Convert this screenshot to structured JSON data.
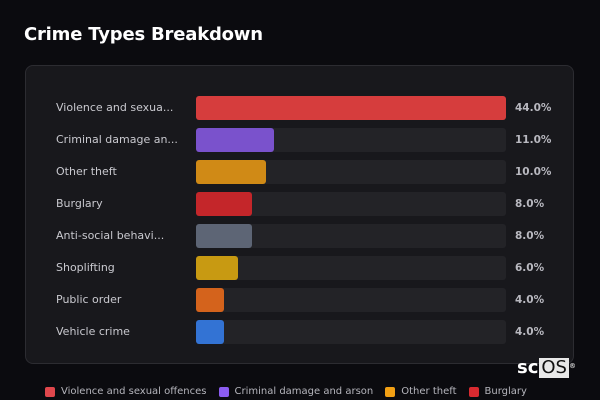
{
  "header": {
    "title": "Crime Types Breakdown"
  },
  "logo": {
    "text_sc": "sc",
    "text_os": "OS",
    "reg": "®"
  },
  "rows": [
    {
      "label": "Violence and sexua...",
      "pct": "44.0%",
      "color": "#d63d3d",
      "value": 44.0
    },
    {
      "label": "Criminal damage an...",
      "pct": "11.0%",
      "color": "#7a52cc",
      "value": 11.0
    },
    {
      "label": "Other theft",
      "pct": "10.0%",
      "color": "#d08a16",
      "value": 10.0
    },
    {
      "label": "Burglary",
      "pct": "8.0%",
      "color": "#c4262a",
      "value": 8.0
    },
    {
      "label": "Anti-social behavi...",
      "pct": "8.0%",
      "color": "#5d6575",
      "value": 8.0
    },
    {
      "label": "Shoplifting",
      "pct": "6.0%",
      "color": "#c89a12",
      "value": 6.0
    },
    {
      "label": "Public order",
      "pct": "4.0%",
      "color": "#d4631c",
      "value": 4.0
    },
    {
      "label": "Vehicle crime",
      "pct": "4.0%",
      "color": "#3373d4",
      "value": 4.0
    }
  ],
  "legend": [
    {
      "label": "Violence and sexual offences",
      "color": "#e0474c"
    },
    {
      "label": "Criminal damage and arson",
      "color": "#8b5cf0"
    },
    {
      "label": "Other theft",
      "color": "#f2a014"
    },
    {
      "label": "Burglary",
      "color": "#d92a30"
    }
  ],
  "chart_data": {
    "type": "bar",
    "orientation": "horizontal",
    "title": "Crime Types Breakdown",
    "categories": [
      "Violence and sexual offences",
      "Criminal damage and arson",
      "Other theft",
      "Burglary",
      "Anti-social behaviour",
      "Shoplifting",
      "Public order",
      "Vehicle crime"
    ],
    "display_labels": [
      "Violence and sexua...",
      "Criminal damage an...",
      "Other theft",
      "Burglary",
      "Anti-social behavi...",
      "Shoplifting",
      "Public order",
      "Vehicle crime"
    ],
    "values": [
      44.0,
      11.0,
      10.0,
      8.0,
      8.0,
      6.0,
      4.0,
      4.0
    ],
    "value_labels": [
      "44.0%",
      "11.0%",
      "10.0%",
      "8.0%",
      "8.0%",
      "6.0%",
      "4.0%",
      "4.0%"
    ],
    "unit": "%",
    "xlabel": "",
    "ylabel": "",
    "xlim": [
      0,
      44
    ],
    "grid": false,
    "legend": {
      "position": "bottom",
      "entries": [
        "Violence and sexual offences",
        "Criminal damage and arson",
        "Other theft",
        "Burglary"
      ]
    }
  }
}
